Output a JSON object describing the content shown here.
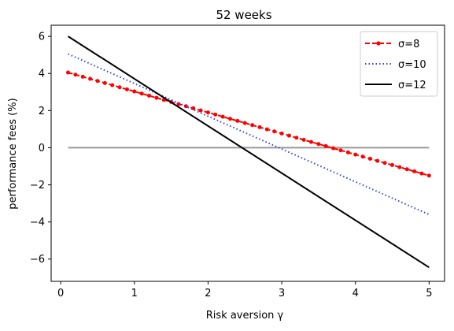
{
  "chart_data": {
    "type": "line",
    "title": "52 weeks",
    "xlabel": "Risk aversion γ",
    "ylabel": "performance fees (%)",
    "xlim": [
      -0.13,
      5.21
    ],
    "ylim": [
      -7.2,
      6.6
    ],
    "xticks": [
      0,
      1,
      2,
      3,
      4,
      5
    ],
    "yticks": [
      -6,
      -4,
      -2,
      0,
      2,
      4,
      6
    ],
    "grid": false,
    "legend_position": "top-right",
    "series": [
      {
        "name": "σ=8",
        "style": "dashed-dots",
        "color": "#ff0000",
        "x": [
          0.1,
          5.0
        ],
        "y": [
          4.05,
          -1.5
        ]
      },
      {
        "name": "σ=10",
        "style": "dotted",
        "color": "#3344dd",
        "x": [
          0.1,
          5.0
        ],
        "y": [
          5.05,
          -3.6
        ]
      },
      {
        "name": "σ=12",
        "style": "solid",
        "color": "#000000",
        "x": [
          0.1,
          5.0
        ],
        "y": [
          6.0,
          -6.45
        ]
      }
    ],
    "reference_line": {
      "y": 0,
      "x": [
        0.1,
        5.0
      ],
      "color": "#999999"
    }
  },
  "legend": {
    "items": [
      "σ=8",
      "σ=10",
      "σ=12"
    ]
  }
}
